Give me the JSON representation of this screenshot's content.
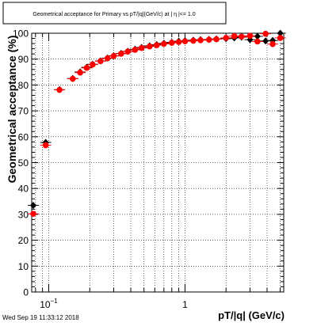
{
  "chart_data": {
    "type": "scatter",
    "title": "Geometrical acceptance for Primary vs pT/|q|(GeV/c) at | η |<= 1.0",
    "xlabel": "pT/|q| (GeV/c)",
    "ylabel": "Geometrical acceptance (%)",
    "xscale": "log",
    "xlim": [
      0.075,
      5.3
    ],
    "ylim": [
      0,
      100
    ],
    "grid": true,
    "x_tick_labels": [
      {
        "value": 0.1,
        "base": "10",
        "exp": "−1"
      },
      {
        "value": 1,
        "base": "1",
        "exp": ""
      }
    ],
    "y_ticks": [
      0,
      10,
      20,
      30,
      40,
      50,
      60,
      70,
      80,
      90,
      100
    ],
    "series": [
      {
        "color": "#000000",
        "marker": "diamond",
        "points": [
          {
            "x": 0.077,
            "y": 33.5
          },
          {
            "x": 0.095,
            "y": 57.8
          },
          {
            "x": 0.12,
            "y": 78.2
          },
          {
            "x": 0.15,
            "y": 82.5
          },
          {
            "x": 0.17,
            "y": 85.0
          },
          {
            "x": 0.19,
            "y": 86.8
          },
          {
            "x": 0.21,
            "y": 88.0
          },
          {
            "x": 0.24,
            "y": 89.3
          },
          {
            "x": 0.27,
            "y": 90.4
          },
          {
            "x": 0.3,
            "y": 91.3
          },
          {
            "x": 0.34,
            "y": 92.2
          },
          {
            "x": 0.38,
            "y": 93.0
          },
          {
            "x": 0.43,
            "y": 93.8
          },
          {
            "x": 0.48,
            "y": 94.5
          },
          {
            "x": 0.55,
            "y": 95.1
          },
          {
            "x": 0.62,
            "y": 95.6
          },
          {
            "x": 0.7,
            "y": 96.1
          },
          {
            "x": 0.8,
            "y": 96.5
          },
          {
            "x": 0.9,
            "y": 96.9
          },
          {
            "x": 1.0,
            "y": 97.1
          },
          {
            "x": 1.15,
            "y": 97.3
          },
          {
            "x": 1.3,
            "y": 97.5
          },
          {
            "x": 1.5,
            "y": 97.6
          },
          {
            "x": 1.7,
            "y": 97.8
          },
          {
            "x": 2.0,
            "y": 97.9
          },
          {
            "x": 2.3,
            "y": 98.2
          },
          {
            "x": 2.6,
            "y": 98.5
          },
          {
            "x": 3.0,
            "y": 97.5
          },
          {
            "x": 3.4,
            "y": 98.8
          },
          {
            "x": 3.9,
            "y": 97.0
          },
          {
            "x": 4.4,
            "y": 97.2
          },
          {
            "x": 5.0,
            "y": 100.0
          }
        ]
      },
      {
        "color": "#ff0000",
        "marker": "circle",
        "points": [
          {
            "x": 0.077,
            "y": 30.2
          },
          {
            "x": 0.095,
            "y": 56.7
          },
          {
            "x": 0.12,
            "y": 78.1
          },
          {
            "x": 0.15,
            "y": 82.4
          },
          {
            "x": 0.17,
            "y": 84.8
          },
          {
            "x": 0.19,
            "y": 86.6
          },
          {
            "x": 0.21,
            "y": 87.9
          },
          {
            "x": 0.24,
            "y": 89.2
          },
          {
            "x": 0.27,
            "y": 90.3
          },
          {
            "x": 0.3,
            "y": 91.2
          },
          {
            "x": 0.34,
            "y": 92.1
          },
          {
            "x": 0.38,
            "y": 92.9
          },
          {
            "x": 0.43,
            "y": 93.6
          },
          {
            "x": 0.48,
            "y": 94.3
          },
          {
            "x": 0.55,
            "y": 94.9
          },
          {
            "x": 0.62,
            "y": 95.4
          },
          {
            "x": 0.7,
            "y": 95.9
          },
          {
            "x": 0.8,
            "y": 96.3
          },
          {
            "x": 0.9,
            "y": 96.6
          },
          {
            "x": 1.0,
            "y": 96.9
          },
          {
            "x": 1.15,
            "y": 97.1
          },
          {
            "x": 1.3,
            "y": 97.3
          },
          {
            "x": 1.5,
            "y": 97.5
          },
          {
            "x": 1.7,
            "y": 97.7
          },
          {
            "x": 2.0,
            "y": 98.2
          },
          {
            "x": 2.3,
            "y": 98.9
          },
          {
            "x": 2.6,
            "y": 98.7
          },
          {
            "x": 3.0,
            "y": 99.0
          },
          {
            "x": 3.4,
            "y": 96.8
          },
          {
            "x": 3.9,
            "y": 99.8
          },
          {
            "x": 4.4,
            "y": 95.8
          },
          {
            "x": 5.0,
            "y": 98.2
          }
        ]
      }
    ]
  },
  "footer": {
    "timestamp": "Wed Sep 19 11:33:12 2018"
  }
}
